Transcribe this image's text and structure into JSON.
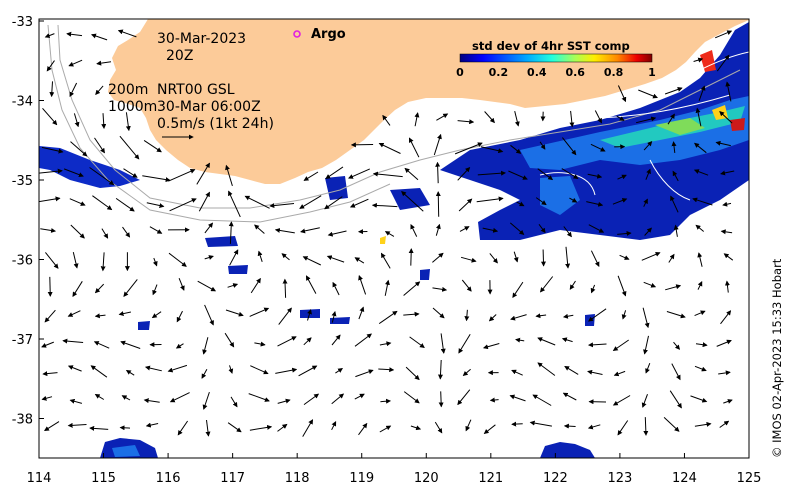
{
  "map": {
    "date": "30-Mar-2023",
    "hour": "20Z",
    "depth_primary": "200m",
    "depth_secondary": "1000m",
    "product": "NRT00 GSL",
    "product_time": "30-Mar 06:00Z",
    "scale_label": "0.5m/s (1kt 24h)",
    "argo_label": "Argo",
    "argo_color": "#e020e0",
    "land_color": "#fccb99",
    "credit": "© IMOS 02-Apr-2023 15:33 Hobart"
  },
  "axes": {
    "x_ticks": [
      "114",
      "115",
      "116",
      "117",
      "118",
      "119",
      "120",
      "121",
      "122",
      "123",
      "124",
      "125"
    ],
    "y_ticks": [
      "-33",
      "-34",
      "-35",
      "-36",
      "-37",
      "-38"
    ]
  },
  "colorbar": {
    "title": "std dev of 4hr SST comp",
    "ticks": [
      "0",
      "0.2",
      "0.4",
      "0.6",
      "0.8",
      "1"
    ],
    "range": [
      0,
      1
    ],
    "colors": [
      "#00007f",
      "#0000ff",
      "#007fff",
      "#00ffff",
      "#7fff7f",
      "#ffff00",
      "#ff7f00",
      "#ff0000",
      "#7f0000"
    ]
  }
}
